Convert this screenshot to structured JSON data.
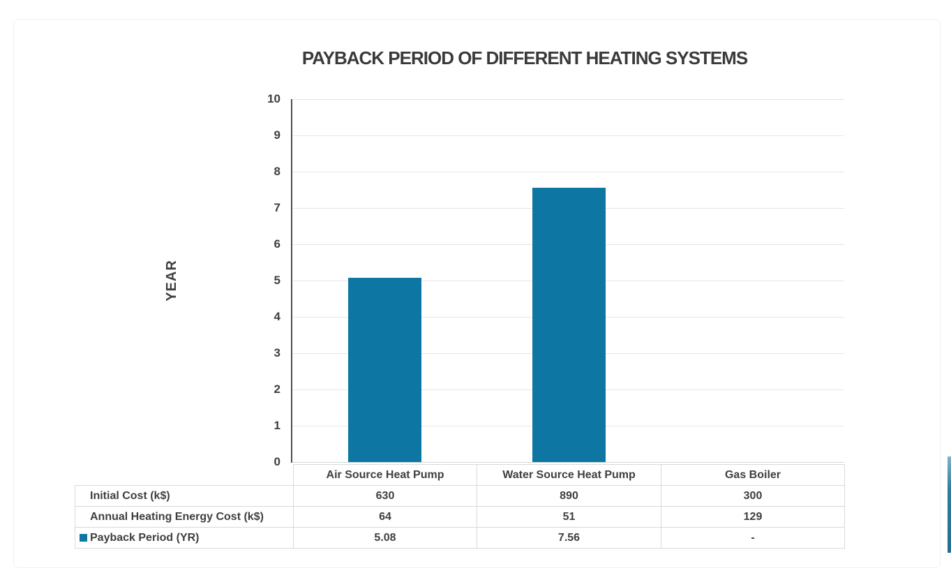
{
  "chart_data": {
    "type": "bar",
    "title": "PAYBACK PERIOD OF DIFFERENT HEATING SYSTEMS",
    "xlabel": "",
    "ylabel": "YEAR",
    "ylim": [
      0,
      10
    ],
    "yticks": [
      0,
      1,
      2,
      3,
      4,
      5,
      6,
      7,
      8,
      9,
      10
    ],
    "grid": true,
    "legend_position": "data-table",
    "categories": [
      "Air Source Heat Pump",
      "Water Source Heat Pump",
      "Gas Boiler"
    ],
    "series": [
      {
        "name": "Payback Period (YR)",
        "values": [
          5.08,
          7.56,
          null
        ],
        "color": "#0d76a3"
      }
    ],
    "data_table": {
      "rows": [
        {
          "label": "Initial Cost (k$)",
          "values": [
            "630",
            "890",
            "300"
          ],
          "legend_key": false
        },
        {
          "label": "Annual Heating Energy Cost (k$)",
          "values": [
            "64",
            "51",
            "129"
          ],
          "legend_key": false
        },
        {
          "label": "Payback Period (YR)",
          "values": [
            "5.08",
            "7.56",
            "-"
          ],
          "legend_key": true
        }
      ]
    }
  },
  "colors": {
    "bar": "#0d76a3",
    "text": "#3f3f3f",
    "gridline": "#e4e7e7",
    "axis_line": "#4d4d4d",
    "table_border": "#d6dada",
    "accent_strip": "#2e7d9c"
  }
}
